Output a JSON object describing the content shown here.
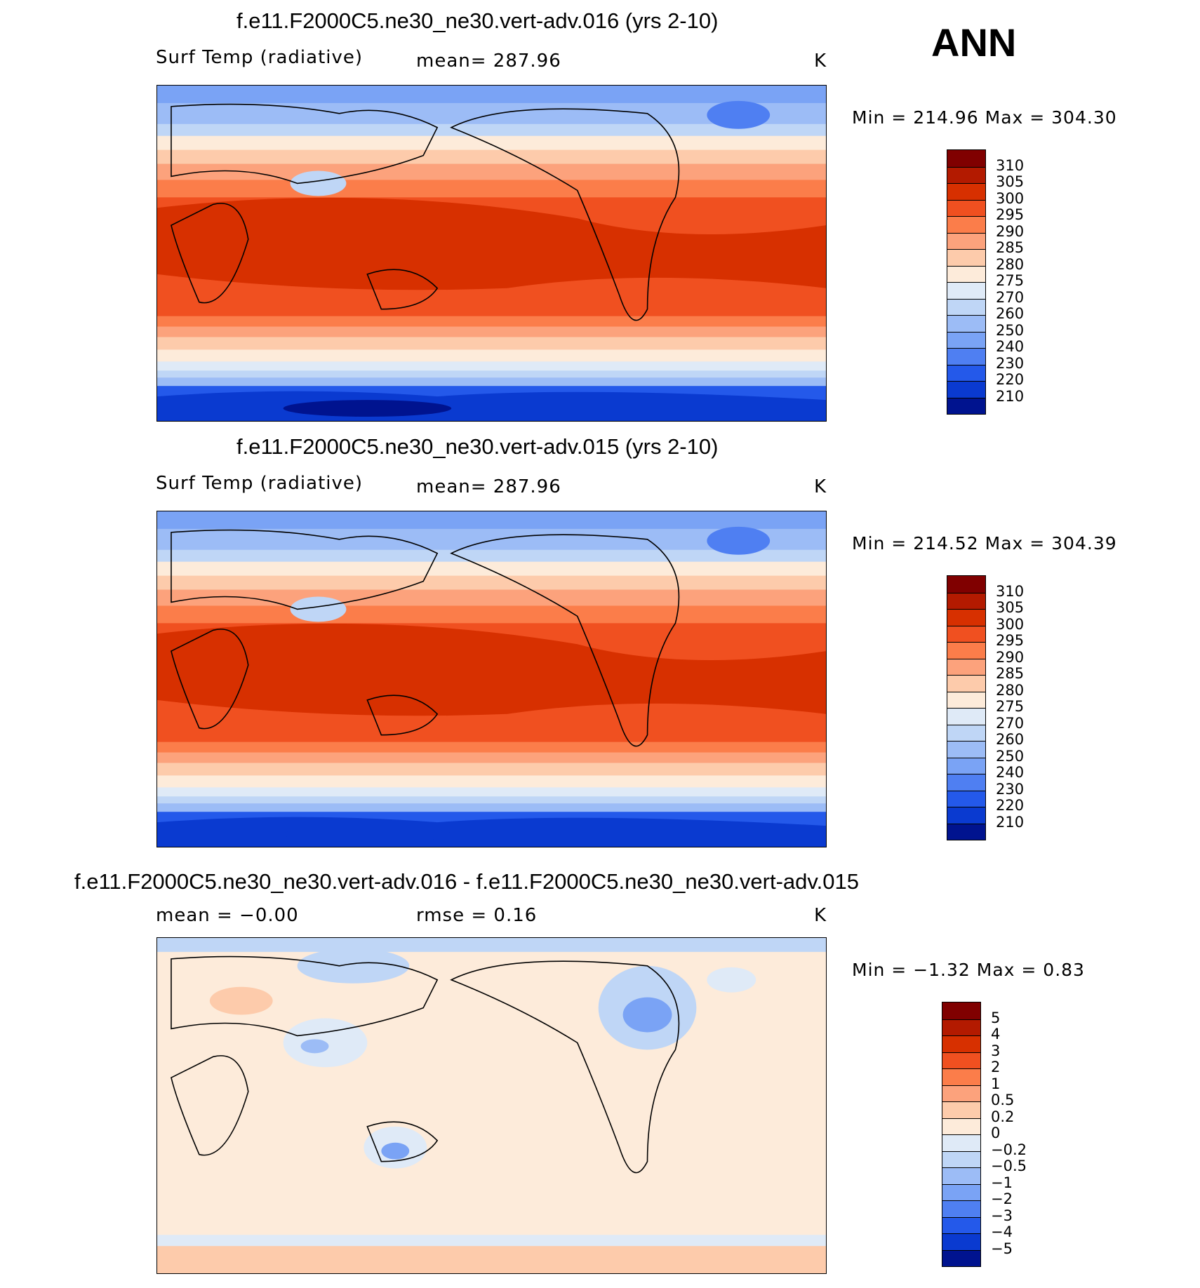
{
  "season": "ANN",
  "panels": [
    {
      "title": "f.e11.F2000C5.ne30_ne30.vert-adv.016 (yrs 2-10)",
      "left_label": "Surf Temp (radiative)",
      "mid_label": "mean= 287.96",
      "units": "K",
      "minmax": "Min = 214.96 Max = 304.30",
      "colorbar_labels": [
        "310",
        "305",
        "300",
        "295",
        "290",
        "285",
        "280",
        "275",
        "270",
        "260",
        "250",
        "240",
        "230",
        "220",
        "210"
      ]
    },
    {
      "title": "f.e11.F2000C5.ne30_ne30.vert-adv.015 (yrs 2-10)",
      "left_label": "Surf Temp (radiative)",
      "mid_label": "mean= 287.96",
      "units": "K",
      "minmax": "Min = 214.52 Max = 304.39",
      "colorbar_labels": [
        "310",
        "305",
        "300",
        "295",
        "290",
        "285",
        "280",
        "275",
        "270",
        "260",
        "250",
        "240",
        "230",
        "220",
        "210"
      ]
    },
    {
      "title": "f.e11.F2000C5.ne30_ne30.vert-adv.016 - f.e11.F2000C5.ne30_ne30.vert-adv.015",
      "left_label": "mean =   −0.00",
      "mid_label": "rmse =    0.16",
      "units": "K",
      "minmax": "Min =  −1.32 Max =    0.83",
      "colorbar_labels": [
        "5",
        "4",
        "3",
        "2",
        "1",
        "0.5",
        "0.2",
        "0",
        "−0.2",
        "−0.5",
        "−1",
        "−2",
        "−3",
        "−4",
        "−5"
      ]
    }
  ],
  "colors": {
    "scale_16": [
      "#800000",
      "#b31a00",
      "#d73000",
      "#f05020",
      "#fb7d4a",
      "#fca27c",
      "#fdcbab",
      "#fdebda",
      "#dfeaf7",
      "#bfd6f6",
      "#9cbcf6",
      "#7aa3f5",
      "#4f7ff2",
      "#2459ea",
      "#0a3ad0",
      "#00138f"
    ]
  }
}
